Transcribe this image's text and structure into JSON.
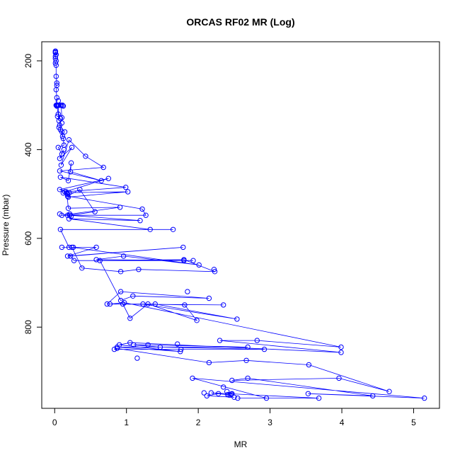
{
  "chart_data": {
    "type": "line",
    "title": "ORCAS RF02 MR (Log)",
    "xlabel": "MR",
    "ylabel": "Pressure (mbar)",
    "xlim": [
      -0.18,
      5.36
    ],
    "ylim": [
      983,
      157
    ],
    "x_ticks": [
      0,
      1,
      2,
      3,
      4,
      5
    ],
    "x_tick_labels": [
      "0",
      "1",
      "2",
      "3",
      "4",
      "5"
    ],
    "y_ticks": [
      200,
      400,
      600,
      800
    ],
    "y_tick_labels": [
      "200",
      "400",
      "600",
      "800"
    ],
    "grid": false,
    "legend": "none",
    "color": "#0000ff",
    "series": [
      {
        "x": [
          0.01,
          0.01,
          0.01,
          0.02,
          0.01,
          0.02,
          0.02,
          0.03,
          0.02,
          0.03,
          0.03,
          0.05,
          0.06,
          0.05,
          0.08,
          0.09,
          0.1,
          0.07,
          0.08,
          0.11,
          0.1,
          0.12,
          0.13,
          0.05,
          0.1,
          0.13,
          0.07,
          0.24,
          0.09,
          0.2,
          0.43,
          0.68,
          0.07,
          0.65,
          0.22,
          0.23,
          0.19,
          0.08,
          0.99,
          0.14,
          0.75,
          0.07,
          0.2,
          1.02,
          0.19,
          0.17,
          0.19,
          0.91,
          0.1,
          1.27,
          1.22,
          0.18,
          0.35,
          0.56,
          0.21,
          1.19,
          0.2,
          1.33,
          1.65,
          0.08,
          0.2,
          0.1,
          0.58,
          0.18,
          1.79,
          0.22,
          0.27,
          1.93,
          0.58,
          0.96,
          2.01,
          0.24,
          0.38,
          0.92,
          1.17,
          2.23,
          1.8,
          0.63,
          0.92,
          1.09,
          2.15,
          0.92,
          0.73,
          2.35,
          0.95,
          1.05,
          1.3,
          1.98,
          1.81,
          1.23,
          2.54,
          1.4,
          0.77,
          0.97,
          3.99,
          2.82,
          2.3,
          3.99,
          1.05,
          0.9,
          1.75,
          0.87,
          2.69,
          1.3,
          1.1,
          1.47,
          2.92,
          1.76,
          0.83,
          0.87,
          2.15,
          2.67,
          3.54,
          4.66,
          3.96,
          2.47,
          2.69,
          4.43,
          3.53,
          5.15,
          1.92,
          2.95,
          2.55,
          3.68,
          2.18,
          2.45,
          2.28,
          2.12,
          2.5
        ]
      }
    ],
    "scattered_points": {
      "x": [
        0.01,
        0.02,
        0.01,
        0.03,
        0.05,
        0.02,
        0.04,
        0.03,
        0.06,
        0.11,
        0.12,
        0.04,
        0.08,
        0.06,
        0.14,
        0.1,
        0.16,
        0.18,
        0.12,
        0.21,
        0.07,
        0.18,
        0.23,
        0.26,
        1.8,
        2.22,
        1.85,
        1.15,
        2.47,
        2.41,
        2.43,
        2.46,
        2.08,
        1.71,
        2.4,
        2.35
      ],
      "y": [
        180,
        186,
        195,
        255,
        290,
        300,
        300,
        302,
        300,
        300,
        302,
        325,
        330,
        350,
        360,
        340,
        495,
        500,
        498,
        545,
        545,
        548,
        550,
        620,
        650,
        670,
        720,
        870,
        950,
        952,
        953,
        951,
        948,
        838,
        945,
        935
      ]
    }
  }
}
